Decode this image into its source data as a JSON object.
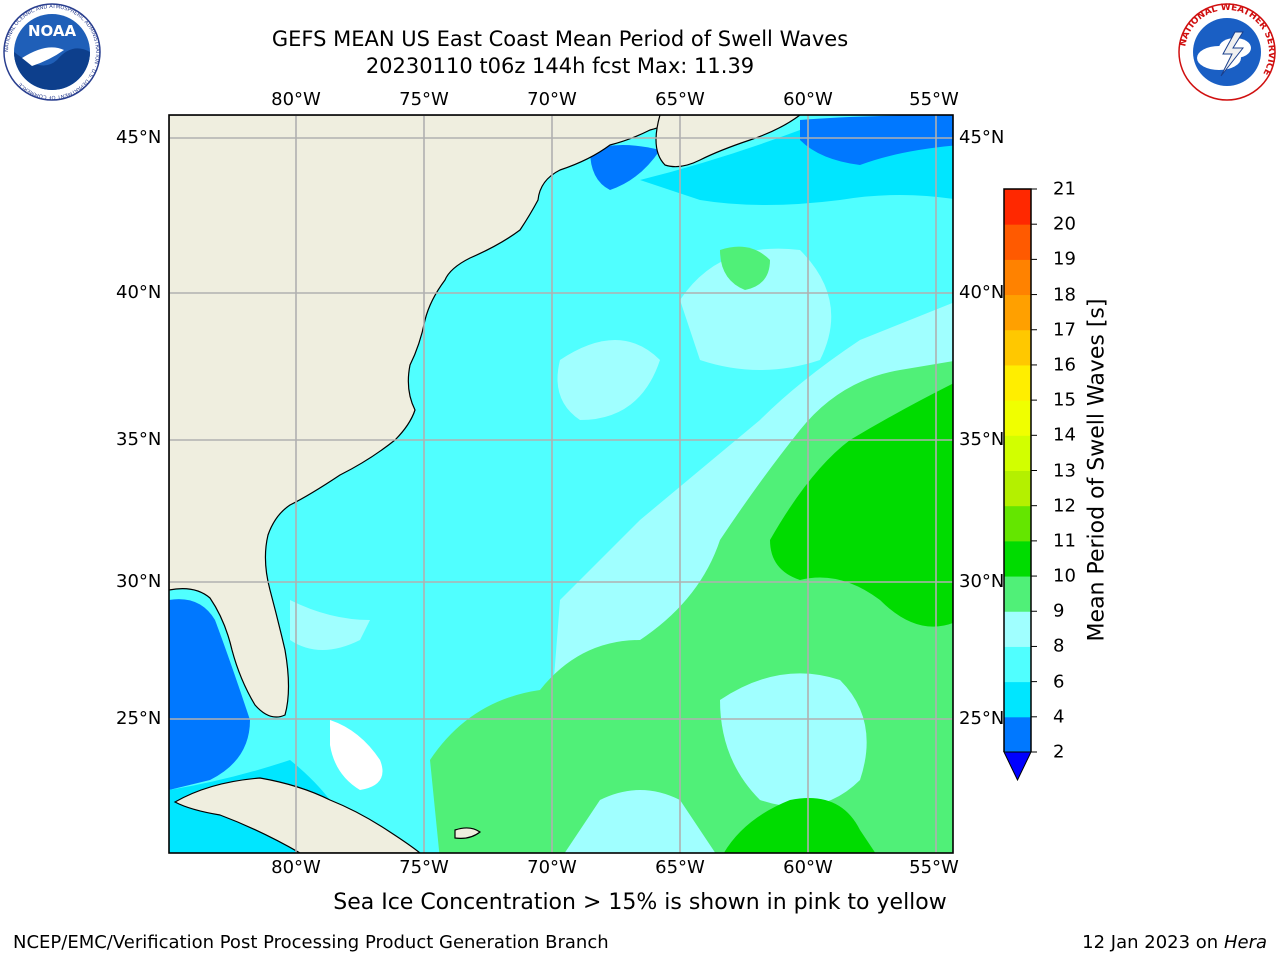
{
  "header": {
    "title_line1": "GEFS MEAN US East Coast Mean Period of Swell Waves",
    "title_line2": "20230110 t06z 144h fcst   Max: 11.39"
  },
  "logos": {
    "left": {
      "icon": "noaa-logo",
      "text": "NOAA",
      "ring_text": "NATIONAL OCEANIC AND ATMOSPHERIC ADMINISTRATION · U.S. DEPARTMENT OF COMMERCE"
    },
    "right": {
      "icon": "nws-logo",
      "ring_text": "NATIONAL WEATHER SERVICE"
    }
  },
  "map": {
    "lon_labels": [
      "80°W",
      "75°W",
      "70°W",
      "65°W",
      "60°W",
      "55°W"
    ],
    "lat_labels": [
      "45°N",
      "40°N",
      "35°N",
      "30°N",
      "25°N"
    ],
    "colors": {
      "land": "#efeedf",
      "grid": "#b0b0b0",
      "coast": "#000000"
    }
  },
  "colorbar": {
    "label": "Mean Period of Swell Waves [s]",
    "ticks": [
      "2",
      "4",
      "6",
      "8",
      "9",
      "10",
      "11",
      "12",
      "13",
      "14",
      "15",
      "16",
      "17",
      "18",
      "19",
      "20",
      "21"
    ],
    "colors": [
      "#0078ff",
      "#00e6ff",
      "#50ffff",
      "#a0ffff",
      "#50f078",
      "#00dc00",
      "#64e600",
      "#b4f000",
      "#d2ff00",
      "#f0ff00",
      "#ffee00",
      "#ffc800",
      "#ffa000",
      "#ff8200",
      "#ff5a00",
      "#ff2800"
    ],
    "under_color": "#0000ff"
  },
  "note": "Sea Ice Concentration > 15% is shown in pink to yellow",
  "footer": {
    "left": "NCEP/EMC/Verification Post Processing Product Generation Branch",
    "right_date": "12 Jan 2023 on ",
    "right_host": "Hera"
  }
}
